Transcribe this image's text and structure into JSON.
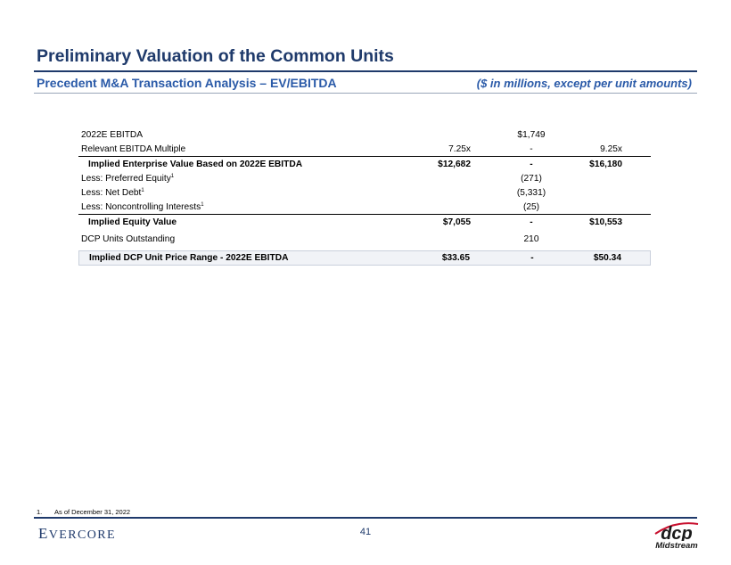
{
  "header": {
    "title": "Preliminary Valuation of the Common Units",
    "subtitle": "Precedent M&A Transaction Analysis – EV/EBITDA",
    "units_note": "($ in millions, except per unit amounts)"
  },
  "table": {
    "ebitda": {
      "label": "2022E EBITDA",
      "mid": "$1,749"
    },
    "multiple": {
      "label": "Relevant EBITDA Multiple",
      "low": "7.25x",
      "sep": "-",
      "high": "9.25x"
    },
    "implied_ev": {
      "label": "Implied Enterprise Value Based on 2022E EBITDA",
      "low": "$12,682",
      "sep": "-",
      "high": "$16,180"
    },
    "preferred": {
      "label": "Less: Preferred Equity",
      "sup": "1",
      "mid": "(271)"
    },
    "net_debt": {
      "label": "Less: Net Debt",
      "sup": "1",
      "mid": "(5,331)"
    },
    "nci": {
      "label": "Less: Noncontrolling Interests",
      "sup": "1",
      "mid": "(25)"
    },
    "implied_equity": {
      "label": "Implied Equity Value",
      "low": "$7,055",
      "sep": "-",
      "high": "$10,553"
    },
    "units": {
      "label": "DCP Units Outstanding",
      "mid": "210"
    },
    "price_range": {
      "label": "Implied DCP Unit Price Range - 2022E EBITDA",
      "low": "$33.65",
      "sep": "-",
      "high": "$50.34"
    }
  },
  "footnote": {
    "number": "1.",
    "text": "As of December 31, 2022"
  },
  "footer": {
    "brand_initial": "E",
    "brand_rest": "VERCORE",
    "page_number": "41",
    "logo_text": "dcp",
    "logo_subtext": "Midstream"
  },
  "colors": {
    "navy": "#1f3a6b",
    "blue": "#2a5aa8",
    "logo_red": "#c8102e"
  }
}
